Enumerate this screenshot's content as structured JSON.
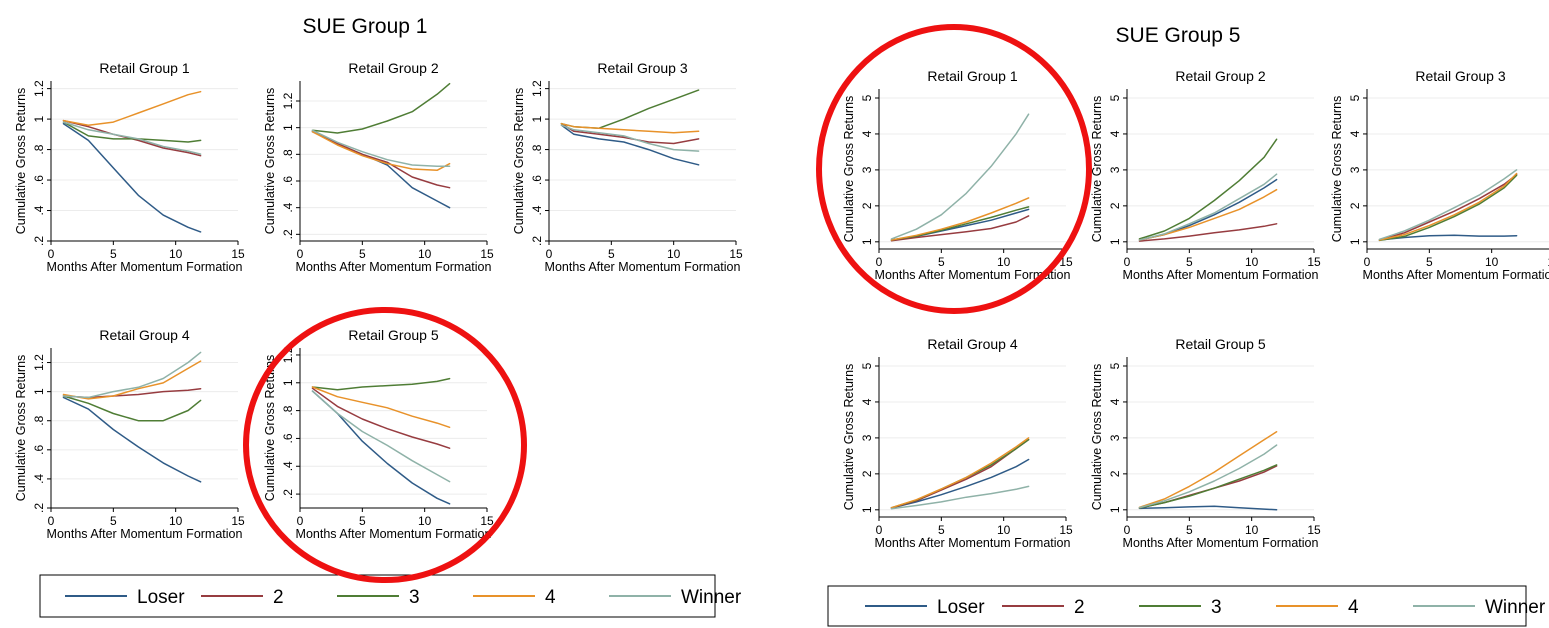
{
  "colors": {
    "Loser": "#2f5b87",
    "2": "#973c40",
    "3": "#4f7d35",
    "4": "#e8922a",
    "Winner": "#8fb2a8",
    "highlight": "#ee1111"
  },
  "legend_labels": [
    "Loser",
    "2",
    "3",
    "4",
    "Winner"
  ],
  "chart_data": [
    {
      "type": "line",
      "title": "SUE Group 1",
      "xlabel": "Months After Momentum Formation",
      "ylabel": "Cumulative Gross Returns",
      "xlim": [
        0,
        15
      ],
      "xticks": [
        0,
        5,
        10,
        15
      ],
      "panels": [
        {
          "title": "Retail Group 1",
          "ylim": [
            0.2,
            1.25
          ],
          "yticks": [
            ".2",
            ".4",
            ".6",
            ".8",
            "1",
            "1.2"
          ],
          "highlighted": false,
          "x": [
            1,
            3,
            5,
            7,
            9,
            11,
            12
          ],
          "series": [
            {
              "name": "Loser",
              "values": [
                0.97,
                0.86,
                0.68,
                0.5,
                0.37,
                0.29,
                0.26
              ]
            },
            {
              "name": "2",
              "values": [
                0.99,
                0.95,
                0.9,
                0.86,
                0.81,
                0.78,
                0.76
              ]
            },
            {
              "name": "3",
              "values": [
                0.98,
                0.89,
                0.87,
                0.87,
                0.86,
                0.85,
                0.86
              ]
            },
            {
              "name": "4",
              "values": [
                0.99,
                0.96,
                0.98,
                1.04,
                1.1,
                1.16,
                1.18
              ]
            },
            {
              "name": "Winner",
              "values": [
                0.98,
                0.93,
                0.9,
                0.87,
                0.82,
                0.79,
                0.77
              ]
            }
          ]
        },
        {
          "title": "Retail Group 2",
          "ylim": [
            0.15,
            1.35
          ],
          "yticks": [
            ".2",
            ".4",
            ".6",
            ".8",
            "1",
            "1.2"
          ],
          "highlighted": false,
          "x": [
            1,
            3,
            5,
            7,
            9,
            11,
            12
          ],
          "series": [
            {
              "name": "Loser",
              "values": [
                0.97,
                0.88,
                0.8,
                0.72,
                0.55,
                0.45,
                0.4
              ]
            },
            {
              "name": "2",
              "values": [
                0.97,
                0.88,
                0.8,
                0.74,
                0.63,
                0.57,
                0.55
              ]
            },
            {
              "name": "3",
              "values": [
                0.98,
                0.96,
                0.99,
                1.05,
                1.12,
                1.25,
                1.33
              ]
            },
            {
              "name": "4",
              "values": [
                0.97,
                0.87,
                0.79,
                0.73,
                0.69,
                0.68,
                0.73
              ]
            },
            {
              "name": "Winner",
              "values": [
                0.98,
                0.89,
                0.82,
                0.76,
                0.72,
                0.71,
                0.71
              ]
            }
          ]
        },
        {
          "title": "Retail Group 3",
          "ylim": [
            0.2,
            1.25
          ],
          "yticks": [
            ".2",
            ".4",
            ".6",
            ".8",
            "1",
            "1.2"
          ],
          "highlighted": false,
          "x": [
            1,
            2,
            4,
            6,
            8,
            10,
            12
          ],
          "series": [
            {
              "name": "Loser",
              "values": [
                0.96,
                0.9,
                0.87,
                0.85,
                0.8,
                0.74,
                0.7
              ]
            },
            {
              "name": "2",
              "values": [
                0.97,
                0.92,
                0.9,
                0.88,
                0.85,
                0.84,
                0.87
              ]
            },
            {
              "name": "3",
              "values": [
                0.97,
                0.95,
                0.94,
                1.0,
                1.07,
                1.13,
                1.19
              ]
            },
            {
              "name": "4",
              "values": [
                0.97,
                0.95,
                0.94,
                0.93,
                0.92,
                0.91,
                0.92
              ]
            },
            {
              "name": "Winner",
              "values": [
                0.96,
                0.93,
                0.91,
                0.89,
                0.84,
                0.8,
                0.79
              ]
            }
          ]
        },
        {
          "title": "Retail Group 4",
          "ylim": [
            0.2,
            1.3
          ],
          "yticks": [
            ".2",
            ".4",
            ".6",
            ".8",
            "1",
            "1.2"
          ],
          "highlighted": false,
          "x": [
            1,
            3,
            5,
            7,
            9,
            11,
            12
          ],
          "series": [
            {
              "name": "Loser",
              "values": [
                0.96,
                0.88,
                0.74,
                0.62,
                0.51,
                0.42,
                0.38
              ]
            },
            {
              "name": "2",
              "values": [
                0.97,
                0.96,
                0.97,
                0.98,
                1.0,
                1.01,
                1.02
              ]
            },
            {
              "name": "3",
              "values": [
                0.97,
                0.92,
                0.85,
                0.8,
                0.8,
                0.87,
                0.94
              ]
            },
            {
              "name": "4",
              "values": [
                0.98,
                0.95,
                0.97,
                1.02,
                1.06,
                1.16,
                1.21
              ]
            },
            {
              "name": "Winner",
              "values": [
                0.97,
                0.96,
                1.0,
                1.03,
                1.09,
                1.2,
                1.27
              ]
            }
          ]
        },
        {
          "title": "Retail Group 5",
          "ylim": [
            0.1,
            1.25
          ],
          "yticks": [
            ".2",
            ".4",
            ".6",
            ".8",
            "1",
            "1.2"
          ],
          "highlighted": true,
          "x": [
            1,
            3,
            5,
            7,
            9,
            11,
            12
          ],
          "series": [
            {
              "name": "Loser",
              "values": [
                0.94,
                0.78,
                0.58,
                0.42,
                0.28,
                0.17,
                0.13
              ]
            },
            {
              "name": "2",
              "values": [
                0.96,
                0.83,
                0.74,
                0.67,
                0.61,
                0.56,
                0.53
              ]
            },
            {
              "name": "3",
              "values": [
                0.97,
                0.95,
                0.97,
                0.98,
                0.99,
                1.01,
                1.03
              ]
            },
            {
              "name": "4",
              "values": [
                0.97,
                0.9,
                0.86,
                0.82,
                0.76,
                0.71,
                0.68
              ]
            },
            {
              "name": "Winner",
              "values": [
                0.94,
                0.78,
                0.65,
                0.55,
                0.44,
                0.34,
                0.29
              ]
            }
          ]
        }
      ]
    },
    {
      "type": "line",
      "title": "SUE Group 5",
      "xlabel": "Months After Momentum Formation",
      "ylabel": "Cumulative Gross Returns",
      "xlim": [
        0,
        15
      ],
      "xticks": [
        0,
        5,
        10,
        15
      ],
      "panels": [
        {
          "title": "Retail Group 1",
          "ylim": [
            0.8,
            5.25
          ],
          "yticks": [
            "1",
            "2",
            "3",
            "4",
            "5"
          ],
          "highlighted": true,
          "x": [
            1,
            3,
            5,
            7,
            9,
            11,
            12
          ],
          "series": [
            {
              "name": "Loser",
              "values": [
                1.05,
                1.15,
                1.3,
                1.45,
                1.6,
                1.8,
                1.9
              ]
            },
            {
              "name": "2",
              "values": [
                1.03,
                1.12,
                1.2,
                1.28,
                1.37,
                1.55,
                1.72
              ]
            },
            {
              "name": "3",
              "values": [
                1.05,
                1.16,
                1.32,
                1.5,
                1.68,
                1.88,
                1.97
              ]
            },
            {
              "name": "4",
              "values": [
                1.05,
                1.18,
                1.35,
                1.55,
                1.8,
                2.07,
                2.22
              ]
            },
            {
              "name": "Winner",
              "values": [
                1.08,
                1.35,
                1.75,
                2.35,
                3.1,
                4.0,
                4.55
              ]
            }
          ]
        },
        {
          "title": "Retail Group 2",
          "ylim": [
            0.8,
            5.25
          ],
          "yticks": [
            "1",
            "2",
            "3",
            "4",
            "5"
          ],
          "highlighted": false,
          "x": [
            1,
            3,
            5,
            7,
            9,
            11,
            12
          ],
          "series": [
            {
              "name": "Loser",
              "values": [
                1.05,
                1.2,
                1.45,
                1.75,
                2.1,
                2.5,
                2.73
              ]
            },
            {
              "name": "2",
              "values": [
                1.02,
                1.08,
                1.16,
                1.25,
                1.33,
                1.43,
                1.5
              ]
            },
            {
              "name": "3",
              "values": [
                1.08,
                1.3,
                1.65,
                2.15,
                2.7,
                3.35,
                3.85
              ]
            },
            {
              "name": "4",
              "values": [
                1.05,
                1.2,
                1.4,
                1.65,
                1.9,
                2.25,
                2.45
              ]
            },
            {
              "name": "Winner",
              "values": [
                1.05,
                1.22,
                1.5,
                1.8,
                2.2,
                2.6,
                2.88
              ]
            }
          ]
        },
        {
          "title": "Retail Group 3",
          "ylim": [
            0.8,
            5.25
          ],
          "yticks": [
            "1",
            "2",
            "3",
            "4",
            "5"
          ],
          "highlighted": false,
          "x": [
            1,
            3,
            5,
            7,
            9,
            11,
            12
          ],
          "series": [
            {
              "name": "Loser",
              "values": [
                1.05,
                1.12,
                1.17,
                1.18,
                1.16,
                1.16,
                1.17
              ]
            },
            {
              "name": "2",
              "values": [
                1.05,
                1.25,
                1.55,
                1.85,
                2.2,
                2.6,
                2.87
              ]
            },
            {
              "name": "3",
              "values": [
                1.04,
                1.15,
                1.4,
                1.7,
                2.05,
                2.5,
                2.85
              ]
            },
            {
              "name": "4",
              "values": [
                1.05,
                1.2,
                1.45,
                1.75,
                2.1,
                2.55,
                2.9
              ]
            },
            {
              "name": "Winner",
              "values": [
                1.07,
                1.3,
                1.6,
                1.95,
                2.3,
                2.75,
                3.0
              ]
            }
          ]
        },
        {
          "title": "Retail Group 4",
          "ylim": [
            0.8,
            5.25
          ],
          "yticks": [
            "1",
            "2",
            "3",
            "4",
            "5"
          ],
          "highlighted": false,
          "x": [
            1,
            3,
            5,
            7,
            9,
            11,
            12
          ],
          "series": [
            {
              "name": "Loser",
              "values": [
                1.05,
                1.22,
                1.42,
                1.65,
                1.9,
                2.2,
                2.4
              ]
            },
            {
              "name": "2",
              "values": [
                1.05,
                1.25,
                1.55,
                1.85,
                2.2,
                2.7,
                2.95
              ]
            },
            {
              "name": "3",
              "values": [
                1.06,
                1.27,
                1.58,
                1.9,
                2.25,
                2.7,
                2.95
              ]
            },
            {
              "name": "4",
              "values": [
                1.06,
                1.28,
                1.58,
                1.9,
                2.3,
                2.75,
                3.0
              ]
            },
            {
              "name": "Winner",
              "values": [
                1.03,
                1.12,
                1.22,
                1.35,
                1.45,
                1.57,
                1.65
              ]
            }
          ]
        },
        {
          "title": "Retail Group 5",
          "ylim": [
            0.8,
            5.25
          ],
          "yticks": [
            "1",
            "2",
            "3",
            "4",
            "5"
          ],
          "highlighted": false,
          "x": [
            1,
            3,
            5,
            7,
            9,
            11,
            12
          ],
          "series": [
            {
              "name": "Loser",
              "values": [
                1.04,
                1.06,
                1.08,
                1.1,
                1.06,
                1.02,
                1.0
              ]
            },
            {
              "name": "2",
              "values": [
                1.05,
                1.2,
                1.4,
                1.6,
                1.8,
                2.05,
                2.22
              ]
            },
            {
              "name": "3",
              "values": [
                1.05,
                1.2,
                1.38,
                1.6,
                1.85,
                2.1,
                2.25
              ]
            },
            {
              "name": "4",
              "values": [
                1.07,
                1.3,
                1.65,
                2.05,
                2.5,
                2.95,
                3.17
              ]
            },
            {
              "name": "Winner",
              "values": [
                1.06,
                1.25,
                1.5,
                1.8,
                2.15,
                2.55,
                2.8
              ]
            }
          ]
        }
      ]
    }
  ]
}
